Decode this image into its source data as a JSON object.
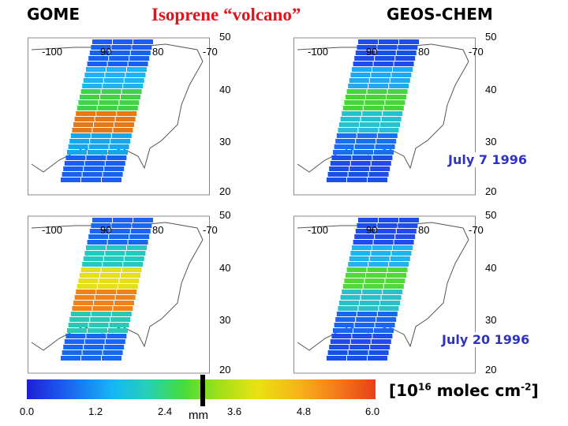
{
  "header": {
    "left": "GOME",
    "title": "Isoprene “volcano”",
    "right": "GEOS-CHEM"
  },
  "map_labels": {
    "lon": [
      "-100",
      "90",
      "80",
      "-70"
    ],
    "lat": [
      "50",
      "40",
      "30",
      "20"
    ]
  },
  "dates": [
    "July 7 1996",
    "July 20 1996"
  ],
  "colorbar": {
    "ticks": [
      "0.0",
      "1.2",
      "2.4",
      "3.6",
      "4.8",
      "6.0"
    ],
    "units_base": "[10",
    "units_exp": "16",
    "units_mid": " molec cm",
    "units_exp2": "-2",
    "units_end": "]",
    "marker_label": "mm"
  },
  "colors": {
    "title": "#e8101a",
    "date": "#2f34c0"
  }
}
